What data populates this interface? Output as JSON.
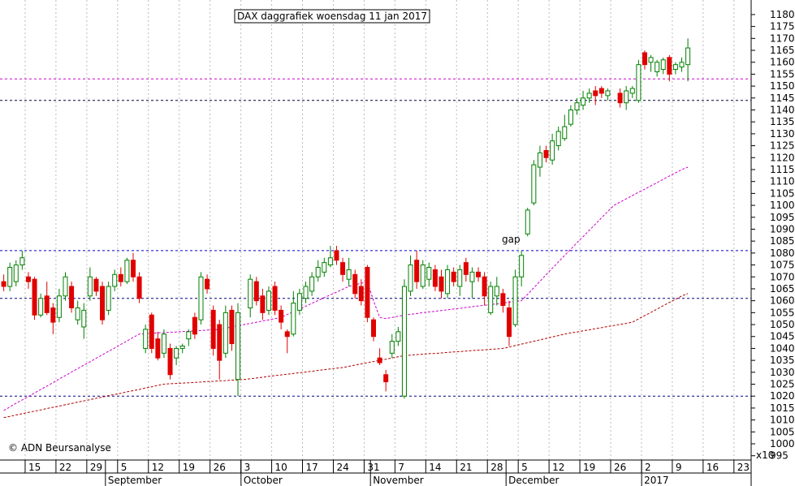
{
  "chart_data": {
    "type": "candlestick",
    "title": "DAX daggrafiek woensdag 11 jan 2017",
    "annotation": "gap",
    "source": "© ADN Beursanalyse",
    "y_unit_label": "x10",
    "ylim": [
      993.2,
      1186.1
    ],
    "yticks": [
      995,
      1000,
      1005,
      1010,
      1015,
      1020,
      1025,
      1030,
      1035,
      1040,
      1045,
      1050,
      1055,
      1060,
      1065,
      1070,
      1075,
      1080,
      1085,
      1090,
      1095,
      1100,
      1105,
      1110,
      1115,
      1120,
      1125,
      1130,
      1135,
      1140,
      1145,
      1150,
      1155,
      1160,
      1165,
      1170,
      1175,
      1180
    ],
    "grid": true,
    "up_color": "#008000",
    "down_color": "#e00000",
    "months": [
      "September",
      "October",
      "November",
      "December",
      "2017"
    ],
    "categories": [
      null,
      null,
      null,
      null,
      "15",
      null,
      null,
      null,
      null,
      "22",
      null,
      null,
      null,
      null,
      "29",
      null,
      null,
      null,
      null,
      "5",
      null,
      null,
      null,
      null,
      "12",
      null,
      null,
      null,
      null,
      "19",
      null,
      null,
      null,
      null,
      "26",
      null,
      null,
      null,
      null,
      "3",
      null,
      null,
      null,
      null,
      "10",
      null,
      null,
      null,
      null,
      "17",
      null,
      null,
      null,
      null,
      "24",
      null,
      null,
      null,
      null,
      "31",
      null,
      null,
      null,
      null,
      "7",
      null,
      null,
      null,
      null,
      "14",
      null,
      null,
      null,
      null,
      "21",
      null,
      null,
      null,
      null,
      "28",
      null,
      null,
      null,
      null,
      "5",
      null,
      null,
      null,
      null,
      "12",
      null,
      null,
      null,
      null,
      "19",
      null,
      null,
      null,
      null,
      "26",
      null,
      null,
      null,
      null,
      "2",
      null,
      null,
      null,
      null,
      "9",
      null,
      null,
      null,
      null,
      "16",
      null,
      null,
      null,
      null,
      "23",
      null,
      null
    ],
    "ohlc": [
      [
        1068,
        1071,
        1064,
        1066
      ],
      [
        1066,
        1076,
        1064,
        1074
      ],
      [
        1068,
        1077,
        1066,
        1075
      ],
      [
        1075,
        1081,
        1073,
        1078
      ],
      [
        1070,
        1072,
        1065,
        1068
      ],
      [
        1069,
        1070,
        1052,
        1054
      ],
      [
        1054,
        1063,
        1053,
        1061
      ],
      [
        1062,
        1068,
        1054,
        1055
      ],
      [
        1057,
        1059,
        1046,
        1051
      ],
      [
        1053,
        1065,
        1051,
        1062
      ],
      [
        1062,
        1072,
        1060,
        1070
      ],
      [
        1066,
        1068,
        1055,
        1057
      ],
      [
        1052,
        1060,
        1050,
        1057
      ],
      [
        1049,
        1059,
        1044,
        1056
      ],
      [
        1062,
        1074,
        1060,
        1070
      ],
      [
        1069,
        1070,
        1062,
        1064
      ],
      [
        1066,
        1068,
        1050,
        1052
      ],
      [
        1056,
        1068,
        1054,
        1066
      ],
      [
        1066,
        1073,
        1064,
        1071
      ],
      [
        1071,
        1074,
        1066,
        1068
      ],
      [
        1068,
        1078,
        1067,
        1077
      ],
      [
        1077,
        1080,
        1068,
        1070
      ],
      [
        1070,
        1072,
        1059,
        1061
      ],
      [
        1040,
        1050,
        1038,
        1048
      ],
      [
        1054,
        1055,
        1038,
        1040
      ],
      [
        1044,
        1047,
        1035,
        1036
      ],
      [
        1038,
        1048,
        1036,
        1046
      ],
      [
        1040,
        1042,
        1027,
        1029
      ],
      [
        1036,
        1041,
        1033,
        1040
      ],
      [
        1040,
        1042,
        1038,
        1041
      ],
      [
        1044,
        1048,
        1041,
        1047
      ],
      [
        1053,
        1055,
        1044,
        1046
      ],
      [
        1052,
        1072,
        1050,
        1070
      ],
      [
        1069,
        1071,
        1063,
        1065
      ],
      [
        1056,
        1058,
        1037,
        1040
      ],
      [
        1050,
        1052,
        1027,
        1035
      ],
      [
        1038,
        1058,
        1036,
        1055
      ],
      [
        1056,
        1058,
        1039,
        1042
      ],
      [
        1027,
        1059,
        1020,
        1055
      ],
      null,
      [
        1057,
        1071,
        1053,
        1069
      ],
      [
        1068,
        1070,
        1058,
        1060
      ],
      [
        1062,
        1065,
        1052,
        1055
      ],
      [
        1056,
        1066,
        1054,
        1064
      ],
      [
        1066,
        1068,
        1054,
        1056
      ],
      [
        1056,
        1058,
        1048,
        1051
      ],
      [
        1047,
        1048,
        1038,
        1045
      ],
      [
        1046,
        1064,
        1045,
        1059
      ],
      [
        1056,
        1065,
        1054,
        1063
      ],
      [
        1061,
        1068,
        1059,
        1066
      ],
      [
        1064,
        1072,
        1062,
        1070
      ],
      [
        1070,
        1077,
        1068,
        1074
      ],
      [
        1072,
        1078,
        1070,
        1076
      ],
      [
        1075,
        1083,
        1074,
        1078
      ],
      [
        1081,
        1083,
        1075,
        1077
      ],
      [
        1076,
        1078,
        1068,
        1071
      ],
      [
        1069,
        1078,
        1066,
        1073
      ],
      [
        1071,
        1073,
        1061,
        1063
      ],
      [
        1066,
        1069,
        1058,
        1060
      ],
      [
        1074,
        1075,
        1051,
        1053
      ],
      [
        1052,
        1053,
        1043,
        1045
      ],
      [
        1036,
        1040,
        1033,
        1034
      ],
      [
        1029,
        1031,
        1022,
        1026
      ],
      [
        1038,
        1046,
        1036,
        1043
      ],
      [
        1043,
        1049,
        1041,
        1047
      ],
      [
        1020,
        1069,
        1019,
        1066
      ],
      [
        1064,
        1079,
        1062,
        1075
      ],
      [
        1077,
        1081,
        1065,
        1068
      ],
      [
        1066,
        1077,
        1065,
        1075
      ],
      [
        1069,
        1076,
        1066,
        1074
      ],
      [
        1073,
        1075,
        1064,
        1066
      ],
      [
        1070,
        1073,
        1061,
        1064
      ],
      [
        1063,
        1075,
        1061,
        1073
      ],
      [
        1072,
        1074,
        1066,
        1068
      ],
      [
        1066,
        1075,
        1062,
        1073
      ],
      [
        1076,
        1078,
        1068,
        1071
      ],
      [
        1068,
        1074,
        1061,
        1072
      ],
      [
        1072,
        1074,
        1068,
        1070
      ],
      [
        1070,
        1072,
        1058,
        1062
      ],
      [
        1055,
        1068,
        1054,
        1066
      ],
      [
        1062,
        1070,
        1058,
        1066
      ],
      [
        1063,
        1065,
        1055,
        1058
      ],
      [
        1057,
        1060,
        1041,
        1045
      ],
      [
        1050,
        1073,
        1049,
        1070
      ],
      [
        1070,
        1081,
        1066,
        1079
      ],
      [
        1088,
        1099,
        1087,
        1098
      ],
      [
        1101,
        1119,
        1100,
        1117
      ],
      [
        1116,
        1125,
        1112,
        1122
      ],
      [
        1123,
        1125,
        1118,
        1120
      ],
      [
        1119,
        1130,
        1117,
        1127
      ],
      [
        1125,
        1133,
        1123,
        1131
      ],
      [
        1128,
        1138,
        1127,
        1133
      ],
      [
        1134,
        1142,
        1133,
        1140
      ],
      [
        1140,
        1145,
        1138,
        1143
      ],
      [
        1142,
        1148,
        1140,
        1145
      ],
      [
        1145,
        1149,
        1143,
        1147
      ],
      [
        1148,
        1150,
        1142,
        1146
      ],
      [
        1149,
        1150,
        1145,
        1147
      ],
      [
        1146,
        1149,
        1144,
        1148
      ],
      null,
      [
        1147,
        1149,
        1141,
        1143
      ],
      [
        1143,
        1150,
        1140,
        1148
      ],
      [
        1147,
        1150,
        1145,
        1149
      ],
      [
        1144,
        1161,
        1143,
        1159
      ],
      [
        1164,
        1165,
        1157,
        1159
      ],
      [
        1160,
        1163,
        1156,
        1162
      ],
      [
        1156,
        1161,
        1154,
        1160
      ],
      [
        1157,
        1162,
        1155,
        1161
      ],
      [
        1162,
        1163,
        1152,
        1155
      ],
      [
        1157,
        1160,
        1155,
        1159
      ],
      [
        1158,
        1162,
        1156,
        1160
      ],
      [
        1159,
        1170,
        1152,
        1166
      ],
      null,
      null,
      null,
      null,
      null,
      null,
      null,
      null,
      null,
      null
    ],
    "series": [
      {
        "color": "#cc00cc",
        "values": [
          1014,
          1015.5,
          1017,
          1018.4,
          1019.8,
          1021.3,
          1022.8,
          1024.2,
          1025.7,
          1027.2,
          1028.6,
          1030.1,
          1031.5,
          1033,
          1034.4,
          1035.9,
          1037.3,
          1038.8,
          1040.2,
          1041.7,
          1043.1,
          1044.6,
          1046,
          1046.2,
          1046.3,
          1046.5,
          1046.6,
          1046.8,
          1046.9,
          1047.1,
          1047.2,
          1047.4,
          1047.5,
          1047.7,
          1047.8,
          1048,
          1048.5,
          1049,
          1049.5,
          1050,
          1050.5,
          1051,
          1051.5,
          1052,
          1052.5,
          1053,
          1054.2,
          1055.4,
          1056.5,
          1057.7,
          1058.9,
          1060.1,
          1061.3,
          1062.5,
          1063.6,
          1064.8,
          1066,
          1066.7,
          1067.3,
          1068,
          1060,
          1053,
          1052.5,
          1053,
          1053.5,
          1054,
          1054.3,
          1054.6,
          1055,
          1055.3,
          1055.6,
          1055.9,
          1056.2,
          1056.5,
          1056.8,
          1057.2,
          1057.5,
          1057.8,
          1058.1,
          1058.4,
          1058.7,
          1059,
          1059.4,
          1059.7,
          1060,
          1062.7,
          1065.4,
          1068.1,
          1070.9,
          1073.6,
          1076.3,
          1079,
          1081.6,
          1084.3,
          1086.9,
          1089.5,
          1092.1,
          1094.8,
          1097.4,
          1100,
          1101.4,
          1102.7,
          1104.1,
          1105.5,
          1106.8,
          1108.2,
          1109.5,
          1110.9,
          1112.3,
          1113.6,
          1115,
          1116,
          null,
          null,
          null,
          null,
          null,
          null,
          null,
          null,
          null,
          null
        ]
      },
      {
        "color": "#b00000",
        "values": [
          1011,
          1011.5,
          1012.1,
          1012.6,
          1013.2,
          1013.7,
          1014.2,
          1014.8,
          1015.3,
          1015.8,
          1016.4,
          1016.9,
          1017.5,
          1018,
          1018.5,
          1019.1,
          1019.6,
          1020.2,
          1020.7,
          1021.2,
          1021.8,
          1022.3,
          1022.8,
          1023.4,
          1023.9,
          1024.5,
          1025,
          1025.2,
          1025.3,
          1025.5,
          1025.6,
          1025.8,
          1025.9,
          1026.1,
          1026.2,
          1026.4,
          1026.5,
          1026.7,
          1026.8,
          1027,
          1027.3,
          1027.6,
          1027.9,
          1028.3,
          1028.6,
          1028.9,
          1029.2,
          1029.5,
          1029.8,
          1030.1,
          1030.4,
          1030.8,
          1031.1,
          1031.4,
          1031.7,
          1032,
          1032.5,
          1033,
          1033.5,
          1034,
          1034.5,
          1035,
          1035.5,
          1036,
          1036.5,
          1037,
          1037.2,
          1037.4,
          1037.6,
          1037.8,
          1037.9,
          1038.1,
          1038.3,
          1038.5,
          1038.7,
          1038.9,
          1039.1,
          1039.3,
          1039.4,
          1039.6,
          1039.8,
          1040,
          1040.6,
          1041.2,
          1041.8,
          1042.4,
          1043,
          1043.6,
          1044.2,
          1044.8,
          1045.4,
          1046,
          1046.5,
          1046.9,
          1047.4,
          1047.8,
          1048.3,
          1048.7,
          1049.2,
          1049.6,
          1050.1,
          1050.5,
          1051,
          1052.4,
          1053.8,
          1055.1,
          1056.5,
          1057.9,
          1059.3,
          1060.6,
          1062,
          1063,
          null,
          null,
          null,
          null,
          null,
          null,
          null,
          null,
          null,
          null
        ]
      }
    ],
    "levels": [
      {
        "value": 1153,
        "color": "#cc00cc"
      },
      {
        "value": 1144,
        "color": "#000040"
      },
      {
        "value": 1081,
        "color": "#0000cc"
      },
      {
        "value": 1061,
        "color": "#000080"
      },
      {
        "value": 1020,
        "color": "#000080"
      }
    ]
  }
}
